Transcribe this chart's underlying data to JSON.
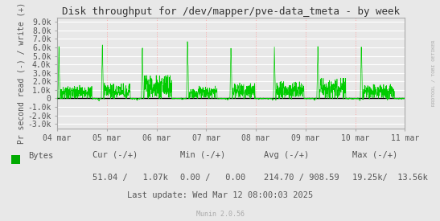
{
  "title": "Disk throughput for /dev/mapper/pve-data_tmeta - by week",
  "ylabel": "Pr second read (-) / write (+)",
  "xlabel_ticks": [
    "04 mar",
    "05 mar",
    "06 mar",
    "07 mar",
    "08 mar",
    "09 mar",
    "10 mar",
    "11 mar"
  ],
  "yticks": [
    -3000,
    -2000,
    -1000,
    0,
    1000,
    2000,
    3000,
    4000,
    5000,
    6000,
    7000,
    8000,
    9000
  ],
  "ytick_labels": [
    "-3.0k",
    "-2.0k",
    "-1.0k",
    "0",
    "1.0k",
    "2.0k",
    "3.0k",
    "4.0k",
    "5.0k",
    "6.0k",
    "7.0k",
    "8.0k",
    "9.0k"
  ],
  "ylim": [
    -3500,
    9500
  ],
  "bg_color": "#e8e8e8",
  "plot_bg_color": "#e8e8e8",
  "hgrid_color": "#ffffff",
  "vgrid_color": "#ff9999",
  "line_color": "#00cc00",
  "zero_line_color": "#000000",
  "axis_color": "#aaaaaa",
  "title_color": "#333333",
  "tick_color": "#555555",
  "legend_label": "Bytes",
  "legend_color": "#00aa00",
  "cur_neg": "51.04",
  "cur_pos": "1.07k",
  "min_neg": "0.00",
  "min_pos": "0.00",
  "avg_neg": "214.70",
  "avg_pos": "908.59",
  "max_neg": "19.25k",
  "max_pos": "13.56k",
  "last_update": "Last update: Wed Mar 12 08:00:03 2025",
  "munin_version": "Munin 2.0.56",
  "rrdtool_label": "RRDTOOL / TOBI OETIKER"
}
